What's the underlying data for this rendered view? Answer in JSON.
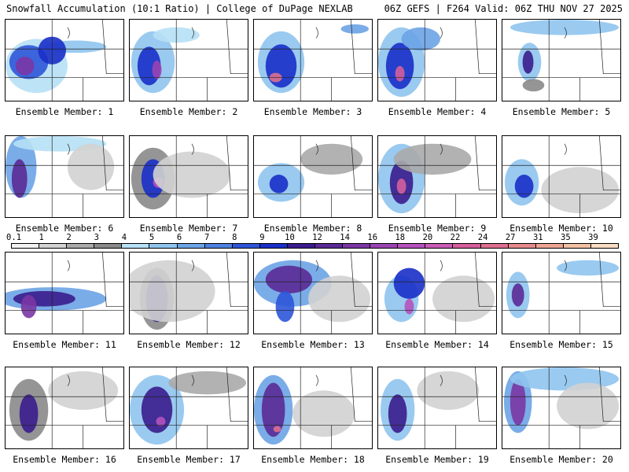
{
  "header": {
    "title": "Snowfall Accumulation (10:1 Ratio) | College of DuPage NEXLAB",
    "run_info": "06Z GEFS | F264 Valid: 06Z THU NOV 27 2025"
  },
  "colorbar": {
    "labels": [
      "0.1",
      "1",
      "2",
      "3",
      "4",
      "5",
      "6",
      "7",
      "8",
      "9",
      "10",
      "12",
      "14",
      "16",
      "18",
      "20",
      "22",
      "24",
      "27",
      "31",
      "35",
      "39"
    ],
    "colors": [
      "#f2f2f2",
      "#d2d2d2",
      "#aaaaaa",
      "#8a8a8a",
      "#b6e0f5",
      "#8fc4ee",
      "#6ba3e6",
      "#4d80e0",
      "#2e55d8",
      "#1a2fc8",
      "#3a1c8c",
      "#5a2a96",
      "#7a36a4",
      "#9a44b2",
      "#b552bd",
      "#c85cb5",
      "#d45f9c",
      "#dd6f8e",
      "#e58a8c",
      "#eca593",
      "#f2c0a3",
      "#f8dcc3"
    ]
  },
  "panels": [
    {
      "caption": "Ensemble Member: 1"
    },
    {
      "caption": "Ensemble Member: 2"
    },
    {
      "caption": "Ensemble Member: 3"
    },
    {
      "caption": "Ensemble Member: 4"
    },
    {
      "caption": "Ensemble Member: 5"
    },
    {
      "caption": "Ensemble Member: 6"
    },
    {
      "caption": "Ensemble Member: 7"
    },
    {
      "caption": "Ensemble Member: 8"
    },
    {
      "caption": "Ensemble Member: 9"
    },
    {
      "caption": "Ensemble Member: 10"
    },
    {
      "caption": "Ensemble Member: 11"
    },
    {
      "caption": "Ensemble Member: 12"
    },
    {
      "caption": "Ensemble Member: 13"
    },
    {
      "caption": "Ensemble Member: 14"
    },
    {
      "caption": "Ensemble Member: 15"
    },
    {
      "caption": "Ensemble Member: 16"
    },
    {
      "caption": "Ensemble Member: 17"
    },
    {
      "caption": "Ensemble Member: 18"
    },
    {
      "caption": "Ensemble Member: 19"
    },
    {
      "caption": "Ensemble Member: 20"
    }
  ]
}
